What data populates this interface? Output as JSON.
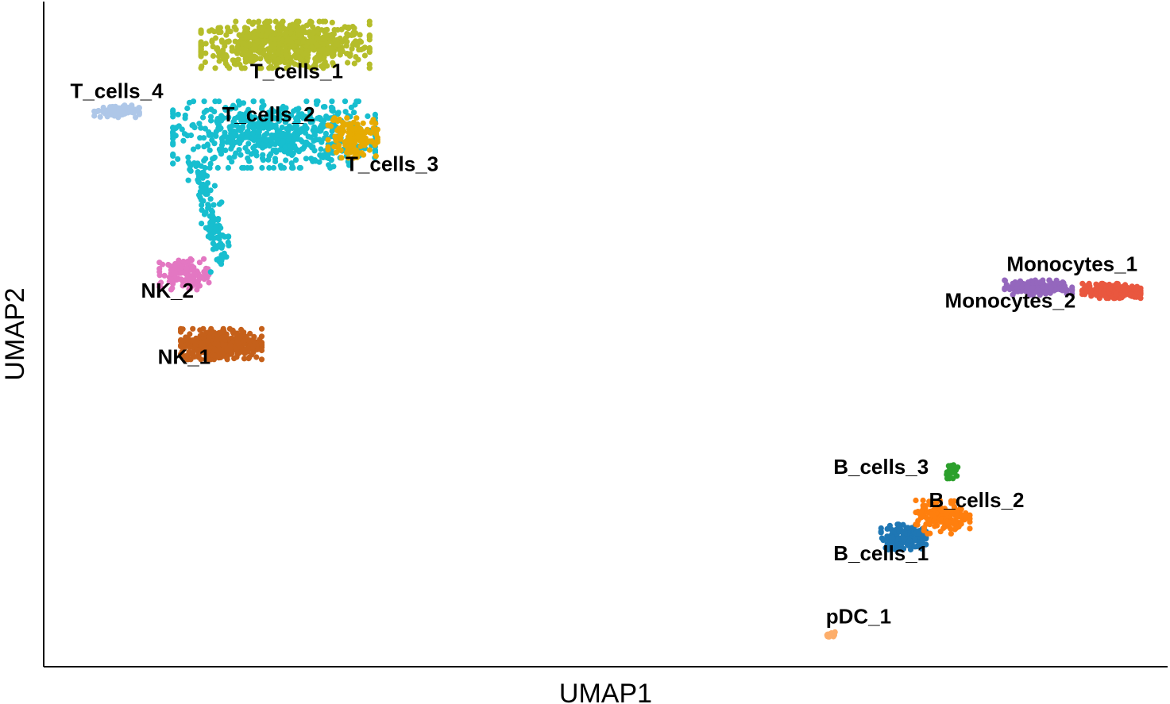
{
  "chart_data": {
    "type": "scatter",
    "xlabel": "UMAP1",
    "ylabel": "UMAP2",
    "xlim": [
      0,
      100
    ],
    "ylim": [
      0,
      100
    ],
    "ticks": false,
    "grid": false,
    "legend": "none",
    "clusters": [
      {
        "name": "T_cells_1",
        "color": "#b5bd2a",
        "center": [
          21.5,
          93.5
        ],
        "spread": [
          7.5,
          3.5
        ],
        "n": 700
      },
      {
        "name": "T_cells_2",
        "color": "#17becf",
        "center": [
          20.5,
          80.0
        ],
        "spread": [
          9.0,
          5.0
        ],
        "n": 600
      },
      {
        "name": "T_cells_3",
        "color": "#e6ab02",
        "center": [
          27.5,
          79.5
        ],
        "spread": [
          2.2,
          3.0
        ],
        "n": 140
      },
      {
        "name": "T_cells_4",
        "color": "#aec7e8",
        "center": [
          6.5,
          83.5
        ],
        "spread": [
          2.0,
          0.9
        ],
        "n": 90
      },
      {
        "name": "NK_1",
        "color": "#c5601a",
        "center": [
          15.8,
          48.5
        ],
        "spread": [
          3.6,
          2.3
        ],
        "n": 420
      },
      {
        "name": "NK_2",
        "color": "#e377c2",
        "center": [
          12.5,
          59.0
        ],
        "spread": [
          2.2,
          2.3
        ],
        "n": 120
      },
      {
        "name": "Monocytes_1",
        "color": "#e9573f",
        "center": [
          95.0,
          56.5
        ],
        "spread": [
          2.6,
          1.1
        ],
        "n": 230
      },
      {
        "name": "Monocytes_2",
        "color": "#9467bd",
        "center": [
          88.5,
          57.0
        ],
        "spread": [
          3.0,
          1.1
        ],
        "n": 160
      },
      {
        "name": "B_cells_1",
        "color": "#1f77b4",
        "center": [
          76.5,
          19.5
        ],
        "spread": [
          2.0,
          1.9
        ],
        "n": 150
      },
      {
        "name": "B_cells_2",
        "color": "#ff7f0e",
        "center": [
          80.0,
          22.5
        ],
        "spread": [
          2.4,
          2.5
        ],
        "n": 150
      },
      {
        "name": "B_cells_3",
        "color": "#2ca02c",
        "center": [
          80.8,
          29.5
        ],
        "spread": [
          0.6,
          1.2
        ],
        "n": 30
      },
      {
        "name": "pDC_1",
        "color": "#fdae6b",
        "center": [
          70.2,
          4.8
        ],
        "spread": [
          0.5,
          0.4
        ],
        "n": 12
      }
    ],
    "labels": [
      {
        "text": "T_cells_1",
        "x": 22.5,
        "y": 88.5
      },
      {
        "text": "T_cells_2",
        "x": 20.0,
        "y": 82.0
      },
      {
        "text": "T_cells_3",
        "x": 31.0,
        "y": 74.5
      },
      {
        "text": "T_cells_4",
        "x": 6.5,
        "y": 85.5
      },
      {
        "text": "NK_2",
        "x": 11.0,
        "y": 55.5
      },
      {
        "text": "NK_1",
        "x": 12.5,
        "y": 45.5
      },
      {
        "text": "Monocytes_1",
        "x": 91.5,
        "y": 59.5
      },
      {
        "text": "Monocytes_2",
        "x": 86.0,
        "y": 54.0
      },
      {
        "text": "B_cells_3",
        "x": 74.5,
        "y": 29.0
      },
      {
        "text": "B_cells_2",
        "x": 83.0,
        "y": 24.0
      },
      {
        "text": "B_cells_1",
        "x": 74.5,
        "y": 16.0
      },
      {
        "text": "pDC_1",
        "x": 72.5,
        "y": 6.5
      }
    ]
  }
}
